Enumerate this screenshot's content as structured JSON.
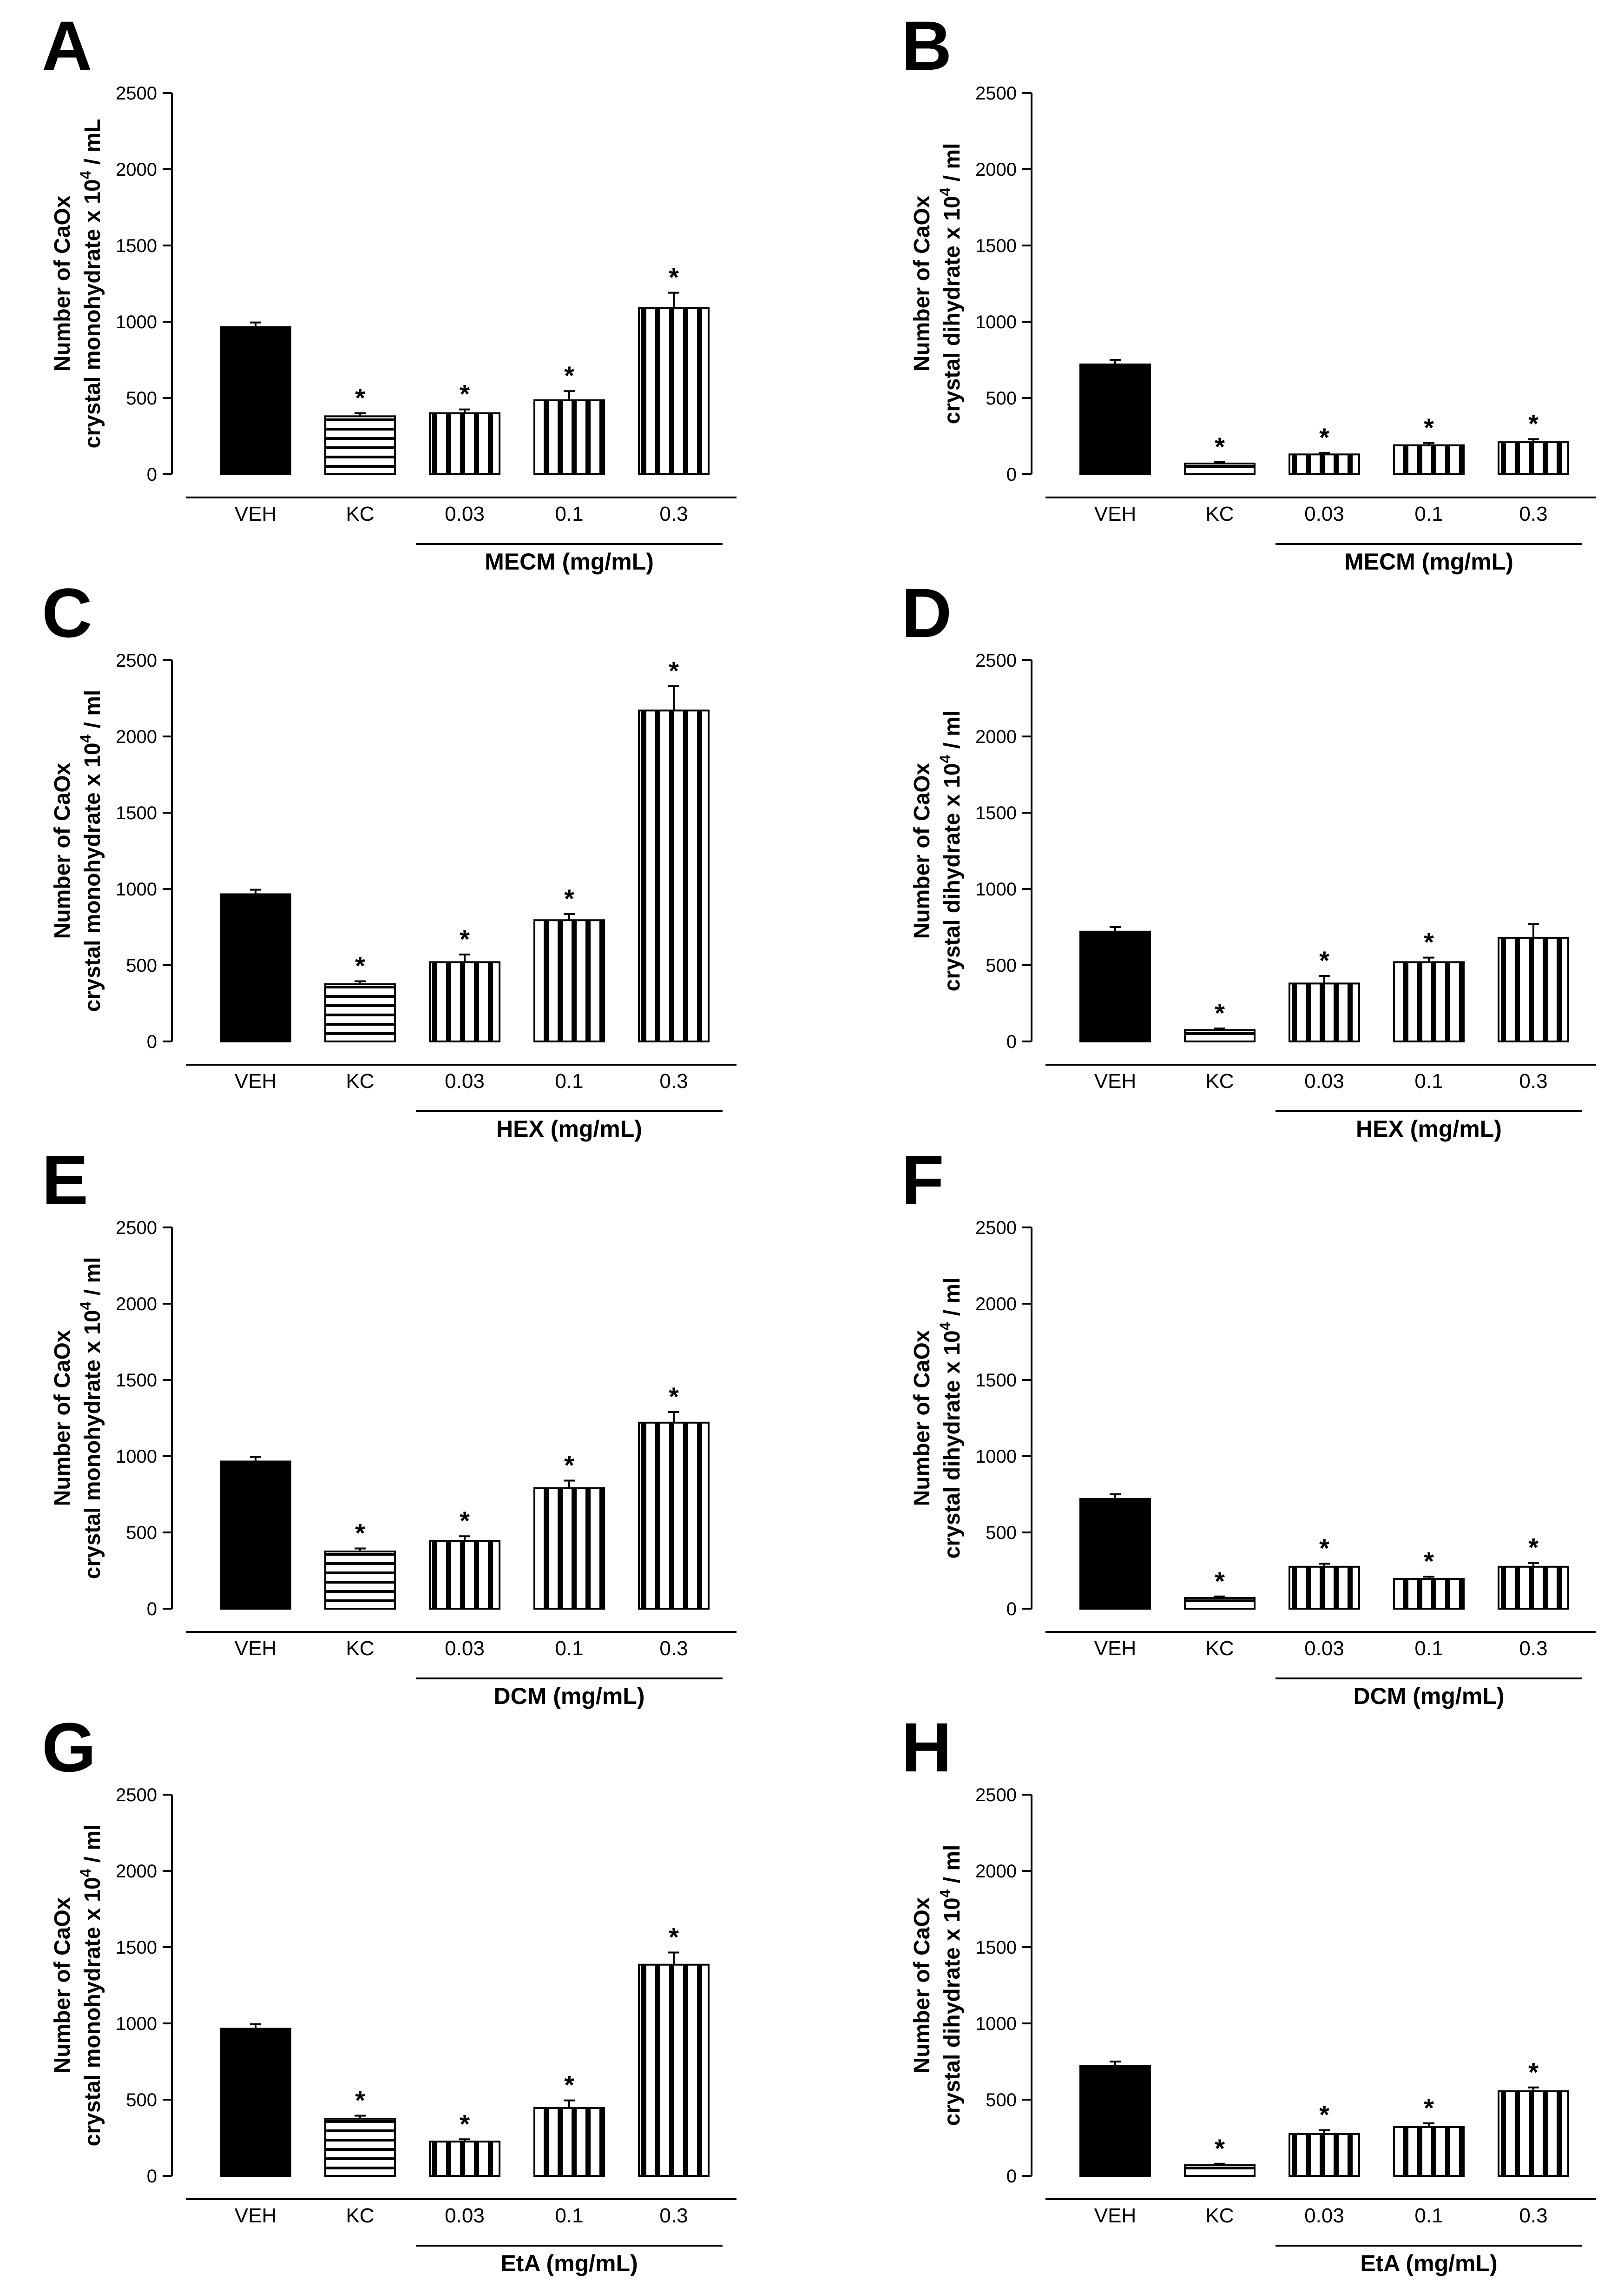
{
  "figure": {
    "description_free": true
  },
  "chart_data": [
    {
      "panel": "A",
      "type": "bar",
      "categories": [
        "VEH",
        "KC",
        "0.03",
        "0.1",
        "0.3"
      ],
      "values": [
        965,
        380,
        400,
        485,
        1090
      ],
      "errors": [
        30,
        20,
        25,
        60,
        100
      ],
      "significance": [
        "",
        "*",
        "*",
        "*",
        "*"
      ],
      "patterns": [
        "solid",
        "hstripe",
        "vstripe",
        "vstripe",
        "vstripe"
      ],
      "ylabel_line1": "Number of CaOx",
      "ylabel_line2": "crystal monohydrate x 10",
      "ylabel_sup": "4",
      "ylabel_unit": " / mL",
      "group_label": "MECM (mg/mL)",
      "ylim": [
        0,
        2500
      ],
      "yticks": [
        "0",
        "500",
        "1000",
        "1500",
        "2000",
        "2500"
      ]
    },
    {
      "panel": "B",
      "type": "bar",
      "categories": [
        "VEH",
        "KC",
        "0.03",
        "0.1",
        "0.3"
      ],
      "values": [
        720,
        70,
        130,
        190,
        210
      ],
      "errors": [
        30,
        10,
        10,
        15,
        20
      ],
      "significance": [
        "",
        "*",
        "*",
        "*",
        "*"
      ],
      "patterns": [
        "solid",
        "hstripe",
        "vstripe",
        "vstripe",
        "vstripe"
      ],
      "ylabel_line1": "Number of CaOx",
      "ylabel_line2": "crystal dihydrate x 10",
      "ylabel_sup": "4",
      "ylabel_unit": " / ml",
      "group_label": "MECM (mg/mL)",
      "ylim": [
        0,
        2500
      ],
      "yticks": [
        "0",
        "500",
        "1000",
        "1500",
        "2000",
        "2500"
      ]
    },
    {
      "panel": "C",
      "type": "bar",
      "categories": [
        "VEH",
        "KC",
        "0.03",
        "0.1",
        "0.3"
      ],
      "values": [
        965,
        375,
        520,
        795,
        2170
      ],
      "errors": [
        30,
        20,
        50,
        40,
        160
      ],
      "significance": [
        "",
        "*",
        "*",
        "*",
        "*"
      ],
      "patterns": [
        "solid",
        "hstripe",
        "vstripe",
        "vstripe",
        "vstripe"
      ],
      "ylabel_line1": "Number of CaOx",
      "ylabel_line2": "crystal monohydrate x 10",
      "ylabel_sup": "4",
      "ylabel_unit": " / ml",
      "group_label": "HEX (mg/mL)",
      "ylim": [
        0,
        2500
      ],
      "yticks": [
        "0",
        "500",
        "1000",
        "1500",
        "2000",
        "2500"
      ]
    },
    {
      "panel": "D",
      "type": "bar",
      "categories": [
        "VEH",
        "KC",
        "0.03",
        "0.1",
        "0.3"
      ],
      "values": [
        720,
        75,
        380,
        520,
        680
      ],
      "errors": [
        30,
        10,
        50,
        30,
        90
      ],
      "significance": [
        "",
        "*",
        "*",
        "*",
        ""
      ],
      "patterns": [
        "solid",
        "hstripe",
        "vstripe",
        "vstripe",
        "vstripe"
      ],
      "ylabel_line1": "Number of CaOx",
      "ylabel_line2": "crystal dihydrate x 10",
      "ylabel_sup": "4",
      "ylabel_unit": " / ml",
      "group_label": "HEX (mg/mL)",
      "ylim": [
        0,
        2500
      ],
      "yticks": [
        "0",
        "500",
        "1000",
        "1500",
        "2000",
        "2500"
      ]
    },
    {
      "panel": "E",
      "type": "bar",
      "categories": [
        "VEH",
        "KC",
        "0.03",
        "0.1",
        "0.3"
      ],
      "values": [
        965,
        375,
        445,
        790,
        1220
      ],
      "errors": [
        30,
        20,
        30,
        50,
        70
      ],
      "significance": [
        "",
        "*",
        "*",
        "*",
        "*"
      ],
      "patterns": [
        "solid",
        "hstripe",
        "vstripe",
        "vstripe",
        "vstripe"
      ],
      "ylabel_line1": "Number of CaOx",
      "ylabel_line2": "crystal monohydrate x 10",
      "ylabel_sup": "4",
      "ylabel_unit": " / ml",
      "group_label": "DCM (mg/mL)",
      "ylim": [
        0,
        2500
      ],
      "yticks": [
        "0",
        "500",
        "1000",
        "1500",
        "2000",
        "2500"
      ]
    },
    {
      "panel": "F",
      "type": "bar",
      "categories": [
        "VEH",
        "KC",
        "0.03",
        "0.1",
        "0.3"
      ],
      "values": [
        720,
        70,
        275,
        195,
        275
      ],
      "errors": [
        30,
        10,
        20,
        15,
        25
      ],
      "significance": [
        "",
        "*",
        "*",
        "*",
        "*"
      ],
      "patterns": [
        "solid",
        "hstripe",
        "vstripe",
        "vstripe",
        "vstripe"
      ],
      "ylabel_line1": "Number of CaOx",
      "ylabel_line2": "crystal dihydrate x 10",
      "ylabel_sup": "4",
      "ylabel_unit": " / ml",
      "group_label": "DCM (mg/mL)",
      "ylim": [
        0,
        2500
      ],
      "yticks": [
        "0",
        "500",
        "1000",
        "1500",
        "2000",
        "2500"
      ]
    },
    {
      "panel": "G",
      "type": "bar",
      "categories": [
        "VEH",
        "KC",
        "0.03",
        "0.1",
        "0.3"
      ],
      "values": [
        965,
        375,
        225,
        445,
        1385
      ],
      "errors": [
        30,
        20,
        15,
        50,
        80
      ],
      "significance": [
        "",
        "*",
        "*",
        "*",
        "*"
      ],
      "patterns": [
        "solid",
        "hstripe",
        "vstripe",
        "vstripe",
        "vstripe"
      ],
      "ylabel_line1": "Number of CaOx",
      "ylabel_line2": "crystal monohydrate x 10",
      "ylabel_sup": "4",
      "ylabel_unit": " / ml",
      "group_label": "EtA (mg/mL)",
      "ylim": [
        0,
        2500
      ],
      "yticks": [
        "0",
        "500",
        "1000",
        "1500",
        "2000",
        "2500"
      ]
    },
    {
      "panel": "H",
      "type": "bar",
      "categories": [
        "VEH",
        "KC",
        "0.03",
        "0.1",
        "0.3"
      ],
      "values": [
        720,
        70,
        275,
        320,
        555
      ],
      "errors": [
        30,
        10,
        25,
        25,
        25
      ],
      "significance": [
        "",
        "*",
        "*",
        "*",
        "*"
      ],
      "patterns": [
        "solid",
        "hstripe",
        "vstripe",
        "vstripe",
        "vstripe"
      ],
      "ylabel_line1": "Number of CaOx",
      "ylabel_line2": "crystal dihydrate x 10",
      "ylabel_sup": "4",
      "ylabel_unit": " / ml",
      "group_label": "EtA (mg/mL)",
      "ylim": [
        0,
        2500
      ],
      "yticks": [
        "0",
        "500",
        "1000",
        "1500",
        "2000",
        "2500"
      ]
    }
  ]
}
